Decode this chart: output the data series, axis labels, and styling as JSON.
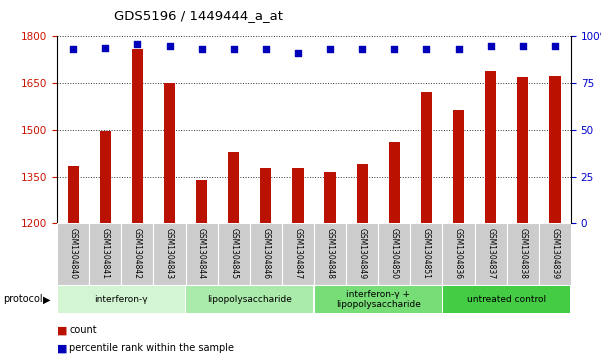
{
  "title": "GDS5196 / 1449444_a_at",
  "samples": [
    "GSM1304840",
    "GSM1304841",
    "GSM1304842",
    "GSM1304843",
    "GSM1304844",
    "GSM1304845",
    "GSM1304846",
    "GSM1304847",
    "GSM1304848",
    "GSM1304849",
    "GSM1304850",
    "GSM1304851",
    "GSM1304836",
    "GSM1304837",
    "GSM1304838",
    "GSM1304839"
  ],
  "counts": [
    1385,
    1495,
    1760,
    1650,
    1340,
    1430,
    1378,
    1378,
    1363,
    1390,
    1460,
    1620,
    1565,
    1690,
    1670,
    1672
  ],
  "percentile_yvals_pct": [
    93,
    94,
    96,
    95,
    93,
    93,
    93,
    91,
    93,
    93,
    93,
    93,
    93,
    95,
    95,
    95
  ],
  "ylim_left": [
    1200,
    1800
  ],
  "ylim_right": [
    0,
    100
  ],
  "yticks_left": [
    1200,
    1350,
    1500,
    1650,
    1800
  ],
  "yticks_right": [
    0,
    25,
    50,
    75,
    100
  ],
  "groups": [
    {
      "label": "interferon-γ",
      "start": 0,
      "end": 4,
      "color": "#d4f5d4"
    },
    {
      "label": "lipopolysaccharide",
      "start": 4,
      "end": 8,
      "color": "#aaeaaa"
    },
    {
      "label": "interferon-γ +\nlipopolysaccharide",
      "start": 8,
      "end": 12,
      "color": "#77dd77"
    },
    {
      "label": "untreated control",
      "start": 12,
      "end": 16,
      "color": "#44cc44"
    }
  ],
  "bar_color": "#bb1100",
  "dot_color": "#0000bb",
  "sample_bg_color": "#cccccc",
  "ylabel_left_color": "#cc1100",
  "ylabel_right_color": "#0000cc",
  "grid_color": "#333333",
  "bar_width": 0.35,
  "dot_size": 25,
  "dot_marker": "s"
}
